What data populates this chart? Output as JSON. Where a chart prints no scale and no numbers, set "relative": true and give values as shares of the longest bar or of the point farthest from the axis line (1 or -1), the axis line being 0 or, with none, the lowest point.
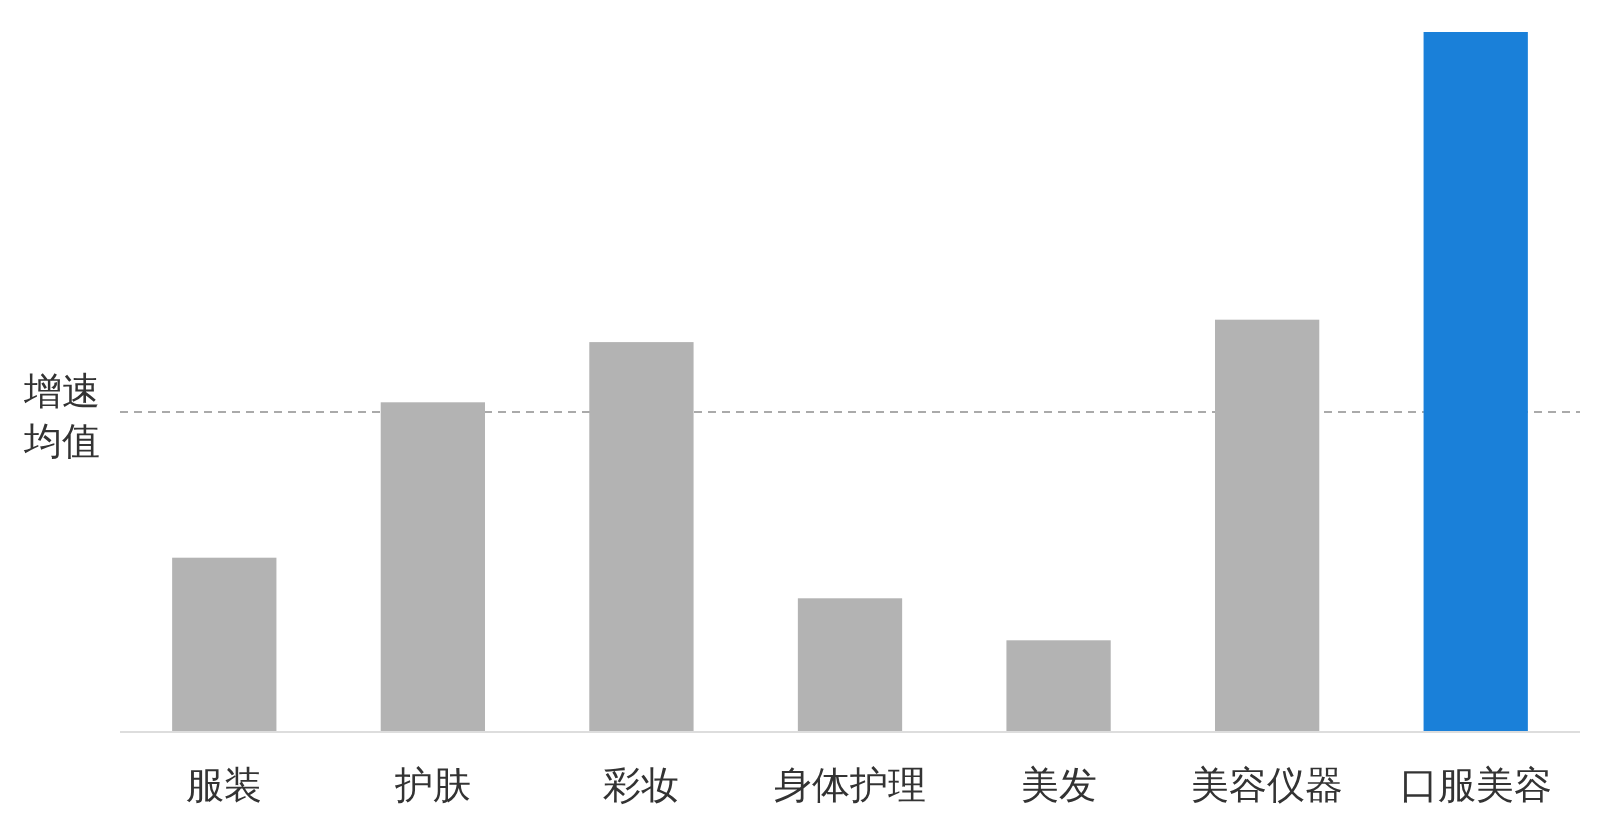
{
  "chart_data": {
    "type": "bar",
    "relative": true,
    "categories": [
      "服装",
      "护肤",
      "彩妆",
      "身体护理",
      "美发",
      "美容仪器",
      "口服美容"
    ],
    "values": [
      0.249,
      0.471,
      0.557,
      0.191,
      0.131,
      0.589,
      1
    ],
    "colors": [
      "#b3b3b3",
      "#b3b3b3",
      "#b3b3b3",
      "#b3b3b3",
      "#b3b3b3",
      "#b3b3b3",
      "#1a80d9"
    ],
    "ref_lines": [
      {
        "axis": "y",
        "value": 0.457,
        "label": "增速均值",
        "color": "#aaaaaa",
        "line_style": "dashed"
      }
    ]
  }
}
